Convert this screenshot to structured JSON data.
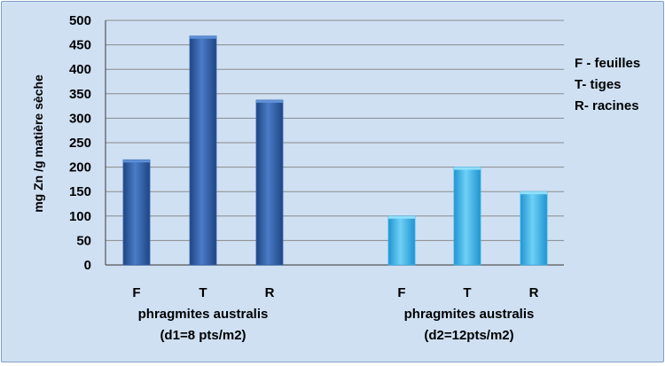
{
  "chart_data": {
    "type": "bar",
    "ylabel": "mg  Zn /g matière sèche",
    "ylim": [
      0,
      500
    ],
    "yticks": [
      0,
      50,
      100,
      150,
      200,
      250,
      300,
      350,
      400,
      450,
      500
    ],
    "grid": true,
    "groups": [
      {
        "label_line1": "phragmites australis",
        "label_line2": "(d1=8 pts/m2)",
        "color": "#2f5fa8",
        "categories": [
          "F",
          "T",
          "R"
        ],
        "values": [
          215,
          468,
          337
        ]
      },
      {
        "label_line1": "phragmites australis",
        "label_line2": "(d2=12pts/m2)",
        "color": "#35aee6",
        "categories": [
          "F",
          "T",
          "R"
        ],
        "values": [
          100,
          200,
          150
        ]
      }
    ],
    "legend": {
      "placement": "right",
      "entries": [
        "F - feuilles",
        "T- tiges",
        "R- racines"
      ]
    }
  }
}
